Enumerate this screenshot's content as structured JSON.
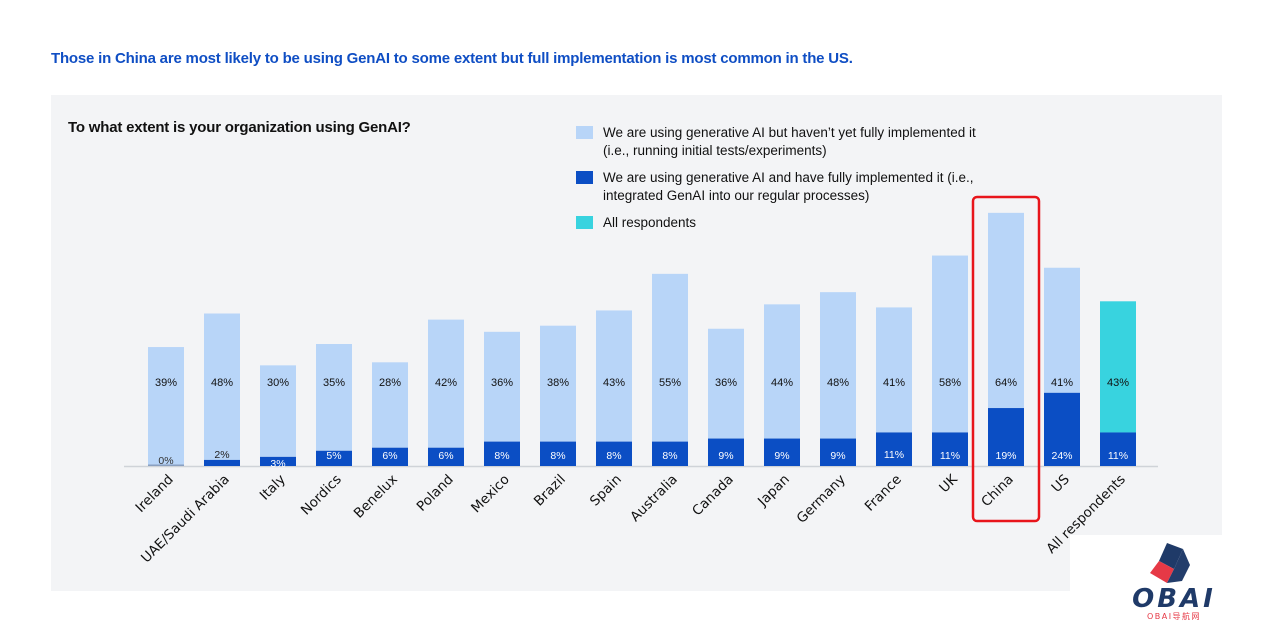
{
  "headline": "Those in China are most likely to be using GenAI to some extent but full implementation is most common in the US.",
  "question": "To what extent is your organization using GenAI?",
  "legend": [
    {
      "label": "We are using generative AI but haven’t yet fully implemented it (i.e., running initial tests/experiments)",
      "color": "#b8d5f8"
    },
    {
      "label": "We are using generative AI and have fully implemented it (i.e., integrated GenAI into our regular processes)",
      "color": "#0b4ec4"
    },
    {
      "label": "All respondents",
      "color": "#38d3df"
    }
  ],
  "highlight": {
    "category": "China",
    "color": "#e8151b"
  },
  "watermark": {
    "brand": "OBAI",
    "subtitle": "OBAI导航网"
  },
  "chart_data": {
    "type": "bar",
    "stacked": true,
    "title": "To what extent is your organization using GenAI?",
    "xlabel": "",
    "ylabel": "",
    "ylim": [
      0,
      85
    ],
    "grid": false,
    "legend_position": "top-right",
    "categories": [
      "Ireland",
      "UAE/Saudi Arabia",
      "Italy",
      "Nordics",
      "Benelux",
      "Poland",
      "Mexico",
      "Brazil",
      "Spain",
      "Australia",
      "Canada",
      "Japan",
      "Germany",
      "France",
      "UK",
      "China",
      "US",
      "All respondents"
    ],
    "series": [
      {
        "name": "We are using generative AI and have fully implemented it (i.e., integrated GenAI into our regular processes)",
        "values": [
          0,
          2,
          3,
          5,
          6,
          6,
          8,
          8,
          8,
          8,
          9,
          9,
          9,
          11,
          11,
          19,
          24,
          11
        ]
      },
      {
        "name": "We are using generative AI but haven’t yet fully implemented it (i.e., running initial tests/experiments)",
        "values": [
          39,
          48,
          30,
          35,
          28,
          42,
          36,
          38,
          43,
          55,
          36,
          44,
          48,
          41,
          58,
          64,
          41,
          43
        ]
      }
    ],
    "data_labels": {
      "full": [
        "0%",
        "2%",
        "3%",
        "5%",
        "6%",
        "6%",
        "8%",
        "8%",
        "8%",
        "8%",
        "9%",
        "9%",
        "9%",
        "11%",
        "11%",
        "19%",
        "24%",
        "11%"
      ],
      "partial": [
        "39%",
        "48%",
        "30%",
        "35%",
        "28%",
        "42%",
        "36%",
        "38%",
        "43%",
        "55%",
        "36%",
        "44%",
        "48%",
        "41%",
        "58%",
        "64%",
        "41%",
        "43%"
      ]
    },
    "special_category": {
      "name": "All respondents",
      "partial_color": "#38d3df"
    }
  }
}
